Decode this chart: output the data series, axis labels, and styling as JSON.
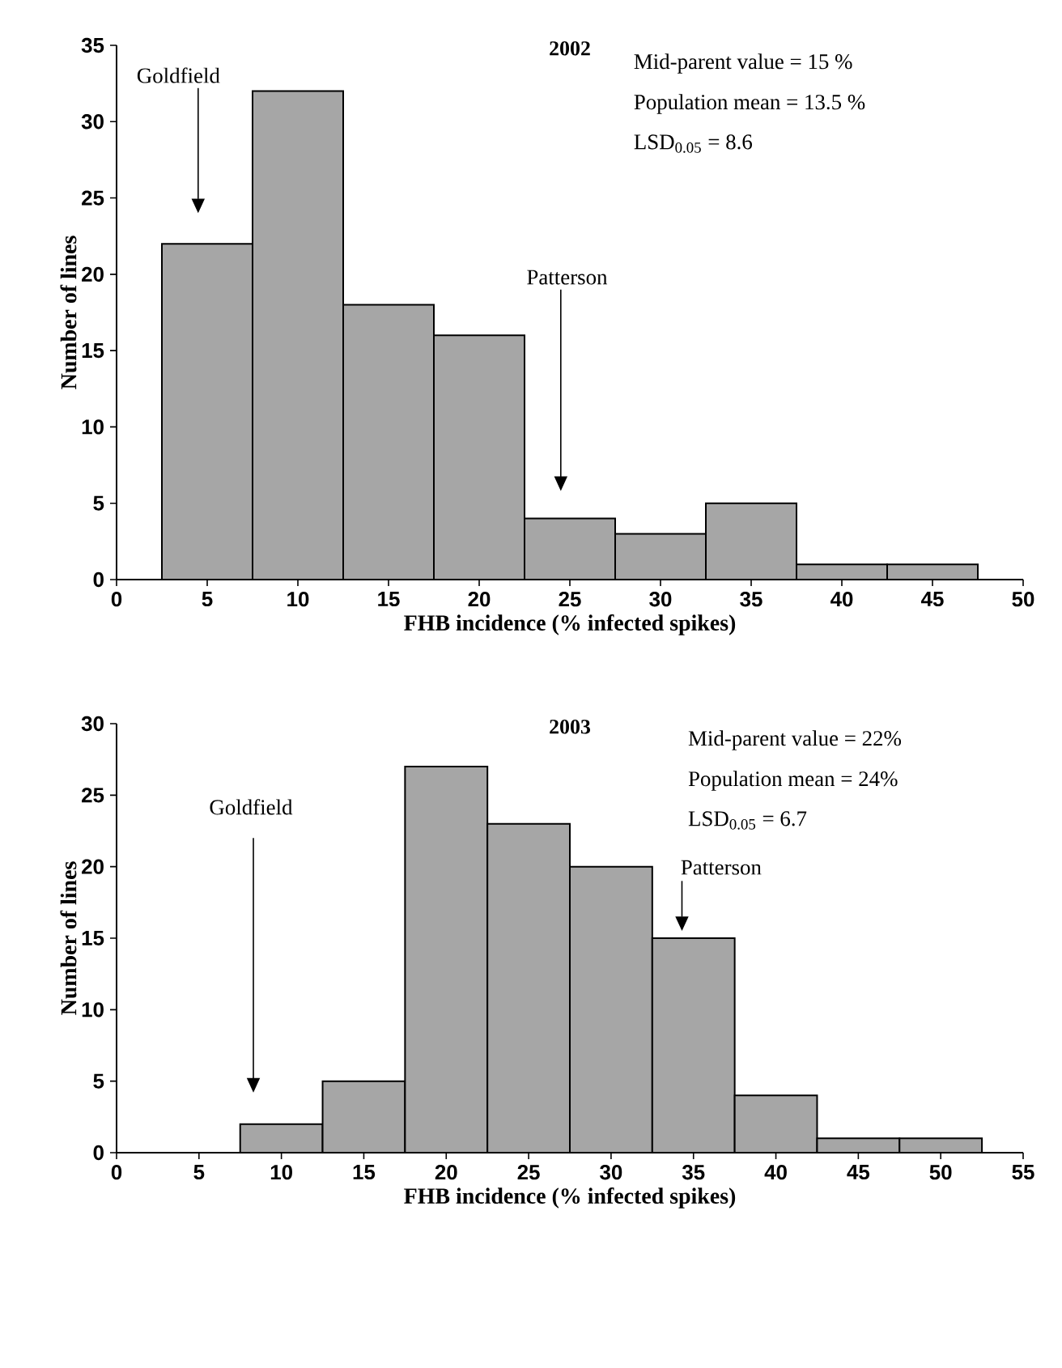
{
  "chart_data": [
    {
      "type": "histogram",
      "title": "2002",
      "xlabel": "FHB incidence (% infected spikes)",
      "ylabel": "Number of lines",
      "bins": [
        2.5,
        7.5,
        12.5,
        17.5,
        22.5,
        27.5,
        32.5,
        37.5,
        42.5,
        47.5
      ],
      "values": [
        22,
        32,
        18,
        16,
        4,
        3,
        5,
        1,
        1
      ],
      "color": "#a6a6a6",
      "xlim": [
        0,
        50
      ],
      "ylim": [
        0,
        35
      ],
      "xticks": [
        0,
        5,
        10,
        15,
        20,
        25,
        30,
        35,
        40,
        45,
        50
      ],
      "yticks": [
        0,
        5,
        10,
        15,
        20,
        25,
        30,
        35
      ],
      "annotations": [
        "Goldfield",
        "Patterson",
        "Mid-parent value = 15 %",
        "Population mean = 13.5 %",
        "LSD$_{0.05}$ = 8.6"
      ]
    },
    {
      "type": "histogram",
      "title": "2003",
      "xlabel": "FHB incidence (% infected spikes)",
      "ylabel": "Number of lines",
      "bins": [
        7.5,
        12.5,
        17.5,
        22.5,
        27.5,
        32.5,
        37.5,
        42.5,
        47.5,
        52.5
      ],
      "values": [
        2,
        5,
        27,
        23,
        20,
        15,
        4,
        1,
        1
      ],
      "color": "#a6a6a6",
      "xlim": [
        0,
        55
      ],
      "ylim": [
        0,
        30
      ],
      "xticks": [
        0,
        5,
        10,
        15,
        20,
        25,
        30,
        35,
        40,
        45,
        50,
        55
      ],
      "yticks": [
        0,
        5,
        10,
        15,
        20,
        25,
        30
      ],
      "annotations": [
        "Goldfield",
        "Patterson",
        "Mid-parent value = 22%",
        "Population mean = 24%",
        "LSD$_{0.05}$ = 6.7"
      ]
    }
  ]
}
